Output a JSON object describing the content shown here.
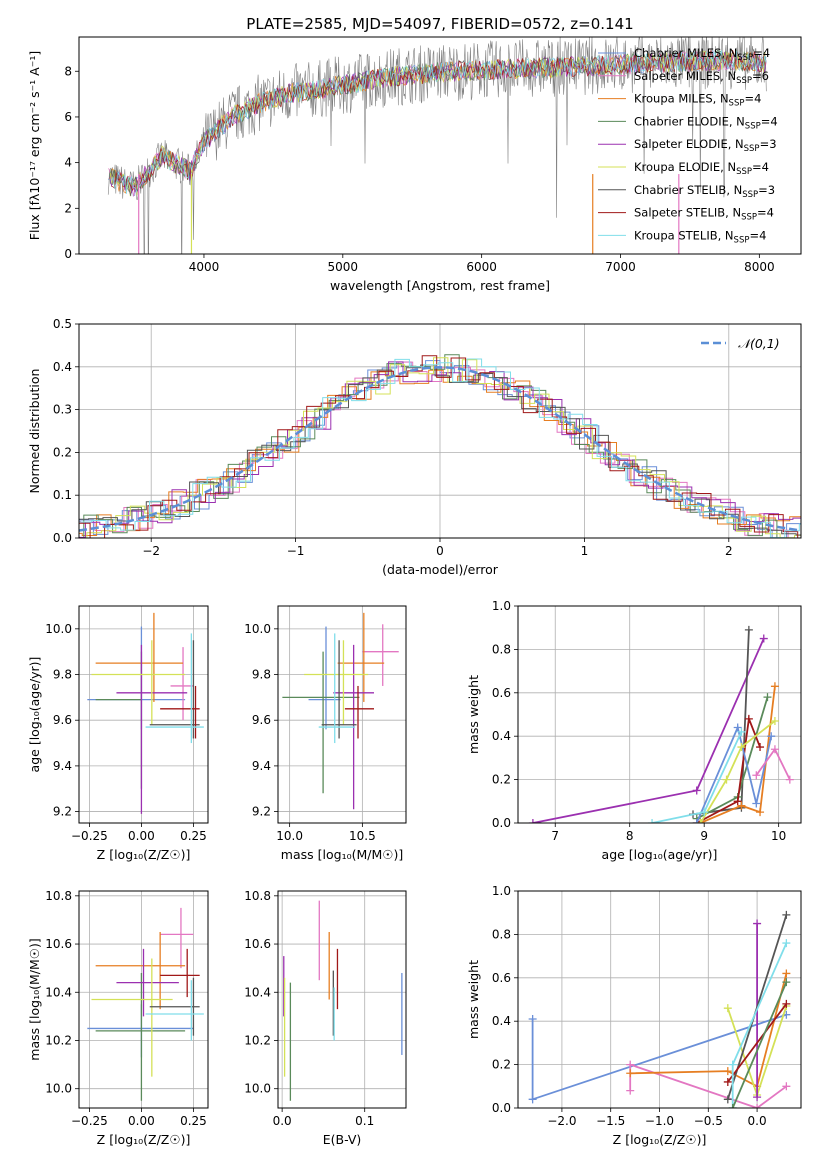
{
  "figure_title": "PLATE=2585, MJD=54097, FIBERID=0572, z=0.141",
  "colors": {
    "chabrier_miles": "#6a8fd8",
    "salpeter_miles": "#e377c2",
    "kroupa_miles": "#e67e22",
    "chabrier_elodie": "#5a8a5a",
    "salpeter_elodie": "#9b30b0",
    "kroupa_elodie": "#d4e157",
    "chabrier_stelib": "#555555",
    "salpeter_stelib": "#a01818",
    "kroupa_stelib": "#80deea",
    "data": "#808080",
    "gaussian": "#5b8fd6",
    "grid": "#b0b0b0"
  },
  "chart_data": [
    {
      "id": "spectrum",
      "type": "line",
      "xlabel": "wavelength [Angstrom, rest frame]",
      "ylabel": "Flux [fλ10⁻¹⁷ erg cm⁻² s⁻¹ A⁻¹]",
      "xlim": [
        3100,
        8300
      ],
      "ylim": [
        0,
        9.5
      ],
      "xticks": [
        4000,
        5000,
        6000,
        7000,
        8000
      ],
      "yticks": [
        0,
        2,
        4,
        6,
        8
      ],
      "grid": false,
      "legend_position": "top-right",
      "series": [
        {
          "name": "Chabrier MILES, N_SSP=4",
          "color_key": "chabrier_miles",
          "nssp": "4"
        },
        {
          "name": "Salpeter MILES, N_SSP=6",
          "color_key": "salpeter_miles",
          "nssp": "6"
        },
        {
          "name": "Kroupa MILES, N_SSP=4",
          "color_key": "kroupa_miles",
          "nssp": "4"
        },
        {
          "name": "Chabrier ELODIE, N_SSP=4",
          "color_key": "chabrier_elodie",
          "nssp": "4"
        },
        {
          "name": "Salpeter ELODIE, N_SSP=3",
          "color_key": "salpeter_elodie",
          "nssp": "3"
        },
        {
          "name": "Kroupa ELODIE, N_SSP=4",
          "color_key": "kroupa_elodie",
          "nssp": "4"
        },
        {
          "name": "Chabrier STELIB, N_SSP=3",
          "color_key": "chabrier_stelib",
          "nssp": "3"
        },
        {
          "name": "Salpeter STELIB, N_SSP=4",
          "color_key": "salpeter_stelib",
          "nssp": "4"
        },
        {
          "name": "Kroupa STELIB, N_SSP=4",
          "color_key": "kroupa_stelib",
          "nssp": "4"
        }
      ],
      "data_profile": {
        "x": [
          3300,
          3500,
          3700,
          3900,
          4000,
          4200,
          4400,
          4600,
          5000,
          5400,
          5800,
          6200,
          6600,
          7000,
          7400,
          7800,
          8000
        ],
        "y": [
          3.4,
          2.9,
          4.3,
          3.6,
          4.9,
          6.0,
          6.6,
          7.0,
          7.4,
          7.8,
          8.0,
          8.1,
          8.2,
          8.3,
          8.4,
          8.5,
          8.4
        ]
      }
    },
    {
      "id": "residuals",
      "type": "histogram",
      "xlabel": "(data-model)/error",
      "ylabel": "Normed distribution",
      "xlim": [
        -2.5,
        2.5
      ],
      "ylim": [
        0,
        0.5
      ],
      "xticks": [
        -2,
        -1,
        0,
        1,
        2
      ],
      "yticks": [
        0.0,
        0.1,
        0.2,
        0.3,
        0.4,
        0.5
      ],
      "grid": true,
      "legend": "𝒩(0,1)",
      "legend_position": "top-right"
    },
    {
      "id": "age_vs_Z",
      "type": "scatter",
      "xlabel": "Z [log₁₀(Z/Z☉)]",
      "ylabel": "age  [log₁₀(age/yr)]",
      "xlim": [
        -0.3,
        0.32
      ],
      "ylim": [
        9.15,
        10.1
      ],
      "xticks": [
        -0.25,
        0.0,
        0.25
      ],
      "yticks": [
        9.2,
        9.4,
        9.6,
        9.8,
        10.0
      ],
      "xtick_labels": [
        "−0.25",
        "0.00",
        "0.25"
      ],
      "grid": true,
      "points": [
        {
          "color_key": "chabrier_miles",
          "x": 0.0,
          "y": 9.69,
          "xlo": -0.26,
          "xhi": 0.21,
          "ylo": 9.56,
          "yhi": 10.01
        },
        {
          "color_key": "salpeter_miles",
          "x": 0.2,
          "y": 9.75,
          "xlo": 0.14,
          "xhi": 0.25,
          "ylo": 9.6,
          "yhi": 9.92
        },
        {
          "color_key": "kroupa_miles",
          "x": 0.06,
          "y": 9.85,
          "xlo": -0.22,
          "xhi": 0.2,
          "ylo": 9.68,
          "yhi": 10.07
        },
        {
          "color_key": "chabrier_elodie",
          "x": 0.0,
          "y": 9.69,
          "xlo": -0.22,
          "xhi": 0.0,
          "ylo": 9.3,
          "yhi": 9.9
        },
        {
          "color_key": "salpeter_elodie",
          "x": 0.0,
          "y": 9.72,
          "xlo": -0.12,
          "xhi": 0.22,
          "ylo": 9.19,
          "yhi": 9.93
        },
        {
          "color_key": "kroupa_elodie",
          "x": 0.05,
          "y": 9.8,
          "xlo": -0.24,
          "xhi": 0.21,
          "ylo": 9.58,
          "yhi": 9.95
        },
        {
          "color_key": "chabrier_stelib",
          "x": 0.25,
          "y": 9.58,
          "xlo": 0.04,
          "xhi": 0.28,
          "ylo": 9.52,
          "yhi": 9.95
        },
        {
          "color_key": "salpeter_stelib",
          "x": 0.26,
          "y": 9.65,
          "xlo": 0.09,
          "xhi": 0.28,
          "ylo": 9.52,
          "yhi": 9.75
        },
        {
          "color_key": "kroupa_stelib",
          "x": 0.24,
          "y": 9.57,
          "xlo": 0.02,
          "xhi": 0.3,
          "ylo": 9.5,
          "yhi": 9.98
        }
      ]
    },
    {
      "id": "age_vs_mass",
      "type": "scatter",
      "xlabel": "mass [log₁₀(M/M☉)]",
      "ylabel": "",
      "xlim": [
        9.92,
        10.8
      ],
      "ylim": [
        9.15,
        10.1
      ],
      "xticks": [
        10.0,
        10.5
      ],
      "yticks": [
        9.2,
        9.4,
        9.6,
        9.8,
        10.0
      ],
      "grid": true,
      "points": [
        {
          "color_key": "chabrier_miles",
          "x": 10.25,
          "y": 9.69,
          "xlo": 10.13,
          "xhi": 10.35,
          "ylo": 9.56,
          "yhi": 10.01
        },
        {
          "color_key": "salpeter_miles",
          "x": 10.64,
          "y": 9.9,
          "xlo": 10.5,
          "xhi": 10.75,
          "ylo": 9.75,
          "yhi": 10.02
        },
        {
          "color_key": "kroupa_miles",
          "x": 10.51,
          "y": 9.85,
          "xlo": 10.33,
          "xhi": 10.65,
          "ylo": 9.68,
          "yhi": 10.07
        },
        {
          "color_key": "chabrier_elodie",
          "x": 10.23,
          "y": 9.7,
          "xlo": 9.95,
          "xhi": 10.48,
          "ylo": 9.28,
          "yhi": 9.9
        },
        {
          "color_key": "salpeter_elodie",
          "x": 10.44,
          "y": 9.72,
          "xlo": 10.3,
          "xhi": 10.58,
          "ylo": 9.21,
          "yhi": 9.93
        },
        {
          "color_key": "kroupa_elodie",
          "x": 10.37,
          "y": 9.8,
          "xlo": 10.1,
          "xhi": 10.54,
          "ylo": 9.58,
          "yhi": 9.95
        },
        {
          "color_key": "chabrier_stelib",
          "x": 10.34,
          "y": 9.58,
          "xlo": 10.22,
          "xhi": 10.46,
          "ylo": 9.52,
          "yhi": 9.95
        },
        {
          "color_key": "salpeter_stelib",
          "x": 10.47,
          "y": 9.65,
          "xlo": 10.38,
          "xhi": 10.58,
          "ylo": 9.52,
          "yhi": 9.75
        },
        {
          "color_key": "kroupa_stelib",
          "x": 10.31,
          "y": 9.57,
          "xlo": 10.2,
          "xhi": 10.45,
          "ylo": 9.5,
          "yhi": 9.98
        }
      ]
    },
    {
      "id": "weight_vs_age",
      "type": "line",
      "xlabel": "age  [log₁₀(age/yr)]",
      "ylabel": "mass weight",
      "xlim": [
        6.5,
        10.3
      ],
      "ylim": [
        0,
        1.0
      ],
      "xticks": [
        7,
        8,
        9,
        10
      ],
      "yticks": [
        0.0,
        0.2,
        0.4,
        0.6,
        0.8,
        1.0
      ],
      "grid": true,
      "series": [
        {
          "color_key": "salpeter_elodie",
          "x": [
            6.7,
            8.9,
            9.8
          ],
          "y": [
            0.0,
            0.15,
            0.85
          ]
        },
        {
          "color_key": "chabrier_stelib",
          "x": [
            8.85,
            9.5,
            9.6
          ],
          "y": [
            0.04,
            0.07,
            0.89
          ]
        },
        {
          "color_key": "chabrier_elodie",
          "x": [
            8.9,
            9.45,
            9.85
          ],
          "y": [
            0.02,
            0.12,
            0.58
          ]
        },
        {
          "color_key": "salpeter_stelib",
          "x": [
            8.9,
            9.45,
            9.6,
            9.75
          ],
          "y": [
            0.0,
            0.1,
            0.48,
            0.35
          ]
        },
        {
          "color_key": "kroupa_miles",
          "x": [
            8.95,
            9.5,
            9.75,
            9.95
          ],
          "y": [
            0.0,
            0.08,
            0.05,
            0.63
          ]
        },
        {
          "color_key": "chabrier_miles",
          "x": [
            8.9,
            9.45,
            9.7,
            9.9
          ],
          "y": [
            0.0,
            0.44,
            0.09,
            0.4
          ]
        },
        {
          "color_key": "kroupa_elodie",
          "x": [
            8.95,
            9.3,
            9.5,
            9.95
          ],
          "y": [
            0.0,
            0.2,
            0.35,
            0.47
          ]
        },
        {
          "color_key": "kroupa_stelib",
          "x": [
            8.3,
            9.0,
            9.5
          ],
          "y": [
            0.0,
            0.05,
            0.42
          ]
        },
        {
          "color_key": "salpeter_miles",
          "x": [
            9.7,
            9.95,
            10.15
          ],
          "y": [
            0.22,
            0.34,
            0.2
          ]
        }
      ]
    },
    {
      "id": "mass_vs_Z",
      "type": "scatter",
      "xlabel": "Z [log₁₀(Z/Z☉)]",
      "ylabel": "mass [log₁₀(M/M☉)]",
      "xlim": [
        -0.3,
        0.32
      ],
      "ylim": [
        9.92,
        10.82
      ],
      "xticks": [
        -0.25,
        0.0,
        0.25
      ],
      "yticks": [
        10.0,
        10.2,
        10.4,
        10.6,
        10.8
      ],
      "xtick_labels": [
        "−0.25",
        "0.00",
        "0.25"
      ],
      "grid": true,
      "points": [
        {
          "color_key": "chabrier_miles",
          "x": 0.0,
          "y": 10.25,
          "xlo": -0.26,
          "xhi": 0.25,
          "ylo": 10.13,
          "yhi": 10.35
        },
        {
          "color_key": "salpeter_miles",
          "x": 0.19,
          "y": 10.64,
          "xlo": 0.09,
          "xhi": 0.25,
          "ylo": 10.5,
          "yhi": 10.75
        },
        {
          "color_key": "kroupa_miles",
          "x": 0.09,
          "y": 10.51,
          "xlo": -0.22,
          "xhi": 0.21,
          "ylo": 10.33,
          "yhi": 10.65
        },
        {
          "color_key": "chabrier_elodie",
          "x": 0.0,
          "y": 10.24,
          "xlo": -0.22,
          "xhi": 0.21,
          "ylo": 9.95,
          "yhi": 10.48
        },
        {
          "color_key": "salpeter_elodie",
          "x": 0.01,
          "y": 10.44,
          "xlo": -0.12,
          "xhi": 0.18,
          "ylo": 10.3,
          "yhi": 10.58
        },
        {
          "color_key": "kroupa_elodie",
          "x": 0.05,
          "y": 10.37,
          "xlo": -0.24,
          "xhi": 0.15,
          "ylo": 10.05,
          "yhi": 10.54
        },
        {
          "color_key": "chabrier_stelib",
          "x": 0.25,
          "y": 10.34,
          "xlo": 0.04,
          "xhi": 0.28,
          "ylo": 10.22,
          "yhi": 10.46
        },
        {
          "color_key": "salpeter_stelib",
          "x": 0.22,
          "y": 10.47,
          "xlo": 0.09,
          "xhi": 0.28,
          "ylo": 10.38,
          "yhi": 10.58
        },
        {
          "color_key": "kroupa_stelib",
          "x": 0.24,
          "y": 10.31,
          "xlo": 0.02,
          "xhi": 0.3,
          "ylo": 10.2,
          "yhi": 10.45
        }
      ]
    },
    {
      "id": "mass_vs_ebv",
      "type": "scatter",
      "xlabel": "E(B-V)",
      "ylabel": "",
      "xlim": [
        -0.005,
        0.15
      ],
      "ylim": [
        9.92,
        10.82
      ],
      "xticks": [
        0.0,
        0.1
      ],
      "yticks": [
        10.0,
        10.2,
        10.4,
        10.6,
        10.8
      ],
      "grid": true,
      "points": [
        {
          "color_key": "chabrier_miles",
          "x": 0.145,
          "y": 10.31,
          "ylo": 10.14,
          "yhi": 10.48
        },
        {
          "color_key": "salpeter_miles",
          "x": 0.045,
          "y": 10.64,
          "ylo": 10.45,
          "yhi": 10.78
        },
        {
          "color_key": "kroupa_miles",
          "x": 0.057,
          "y": 10.51,
          "ylo": 10.37,
          "yhi": 10.65
        },
        {
          "color_key": "chabrier_elodie",
          "x": 0.01,
          "y": 10.2,
          "ylo": 9.95,
          "yhi": 10.44
        },
        {
          "color_key": "salpeter_elodie",
          "x": 0.002,
          "y": 10.44,
          "ylo": 10.3,
          "yhi": 10.55
        },
        {
          "color_key": "kroupa_elodie",
          "x": 0.003,
          "y": 10.28,
          "ylo": 10.05,
          "yhi": 10.46
        },
        {
          "color_key": "chabrier_stelib",
          "x": 0.062,
          "y": 10.36,
          "ylo": 10.22,
          "yhi": 10.49
        },
        {
          "color_key": "salpeter_stelib",
          "x": 0.067,
          "y": 10.45,
          "ylo": 10.33,
          "yhi": 10.58
        },
        {
          "color_key": "kroupa_stelib",
          "x": 0.063,
          "y": 10.3,
          "ylo": 10.2,
          "yhi": 10.42
        }
      ]
    },
    {
      "id": "weight_vs_Z",
      "type": "line",
      "xlabel": "Z [log₁₀(Z/Z☉)]",
      "ylabel": "mass weight",
      "xlim": [
        -2.45,
        0.45
      ],
      "ylim": [
        0,
        1.0
      ],
      "xticks": [
        -2.0,
        -1.5,
        -1.0,
        -0.5,
        0.0
      ],
      "xtick_labels": [
        "−2.0",
        "−1.5",
        "−1.0",
        "−0.5",
        "0.0"
      ],
      "yticks": [
        0.0,
        0.2,
        0.4,
        0.6,
        0.8,
        1.0
      ],
      "grid": true,
      "series": [
        {
          "color_key": "chabrier_miles",
          "x": [
            -2.3,
            -2.3,
            0.3
          ],
          "y": [
            0.41,
            0.04,
            0.43
          ]
        },
        {
          "color_key": "salpeter_miles",
          "x": [
            -1.3,
            -1.3,
            0.0,
            0.3
          ],
          "y": [
            0.08,
            0.2,
            0.0,
            0.1
          ]
        },
        {
          "color_key": "kroupa_miles",
          "x": [
            -1.3,
            -0.3,
            0.0,
            0.3
          ],
          "y": [
            0.16,
            0.17,
            0.1,
            0.62
          ]
        },
        {
          "color_key": "kroupa_elodie",
          "x": [
            -0.3,
            0.0,
            0.3
          ],
          "y": [
            0.46,
            0.06,
            0.47
          ]
        },
        {
          "color_key": "salpeter_elodie",
          "x": [
            0.0,
            0.0
          ],
          "y": [
            0.05,
            0.85
          ]
        },
        {
          "color_key": "chabrier_stelib",
          "x": [
            -0.3,
            0.3
          ],
          "y": [
            0.04,
            0.89
          ]
        },
        {
          "color_key": "salpeter_stelib",
          "x": [
            -0.3,
            0.3
          ],
          "y": [
            0.12,
            0.48
          ]
        },
        {
          "color_key": "kroupa_stelib",
          "x": [
            -0.25,
            -0.25,
            0.3
          ],
          "y": [
            0.0,
            0.2,
            0.76
          ]
        },
        {
          "color_key": "chabrier_elodie",
          "x": [
            -0.25,
            0.3
          ],
          "y": [
            0.0,
            0.58
          ]
        }
      ]
    }
  ]
}
